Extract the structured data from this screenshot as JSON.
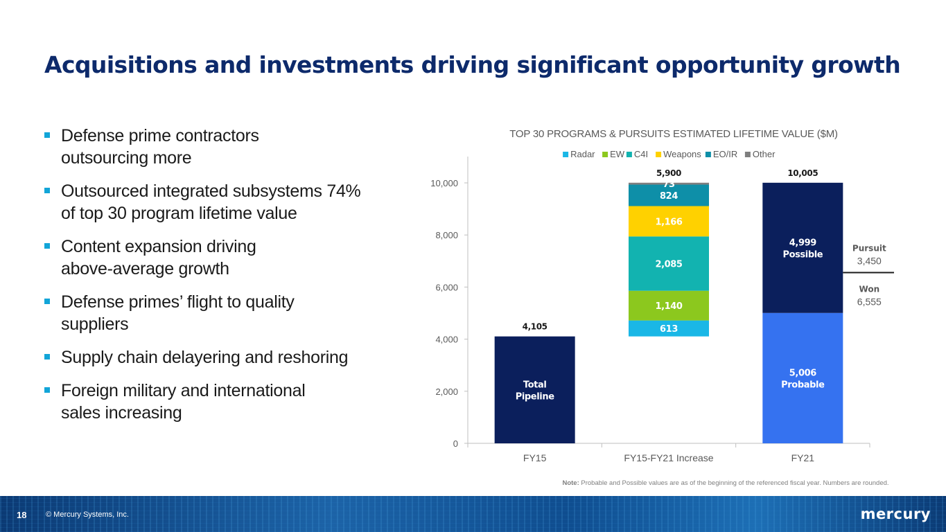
{
  "title": "Acquisitions and investments driving significant opportunity growth",
  "bullets": [
    {
      "lines": [
        "Defense prime contractors",
        "outsourcing more"
      ]
    },
    {
      "lines": [
        "Outsourced integrated subsystems 74%",
        "of top 30 program lifetime value"
      ]
    },
    {
      "lines": [
        "Content expansion driving",
        "above-average growth"
      ]
    },
    {
      "lines": [
        "Defense primes’ flight to quality",
        "suppliers"
      ]
    },
    {
      "lines": [
        "Supply chain delayering and reshoring"
      ]
    },
    {
      "lines": [
        "Foreign military and international",
        "sales increasing"
      ]
    }
  ],
  "chart_data": {
    "type": "bar",
    "stacked": true,
    "waterfall": true,
    "title": "TOP 30 PROGRAMS & PURSUITS ESTIMATED LIFETIME VALUE ($M)",
    "categories": [
      "FY15",
      "FY15-FY21 Increase",
      "FY21"
    ],
    "ylim": [
      0,
      10000
    ],
    "yticks": [
      0,
      2000,
      4000,
      6000,
      8000,
      10000
    ],
    "ytick_labels": [
      "0",
      "2,000",
      "4,000",
      "6,000",
      "8,000",
      "10,000"
    ],
    "grid": false,
    "legend": {
      "placement": "top",
      "entries": [
        {
          "name": "Radar",
          "color": "#1ab7e6"
        },
        {
          "name": "EW",
          "color": "#8cc81e"
        },
        {
          "name": "C4I",
          "color": "#12b3b0"
        },
        {
          "name": "Weapons",
          "color": "#ffd100"
        },
        {
          "name": "EO/IR",
          "color": "#0e8fa8"
        },
        {
          "name": "Other",
          "color": "#7f7f7f"
        }
      ]
    },
    "bars": [
      {
        "category": "FY15",
        "segments": [
          {
            "value": 4105,
            "color": "#0b1f5c",
            "label": [
              "Total",
              "Pipeline"
            ]
          }
        ],
        "total_label": "4,105"
      },
      {
        "category": "FY15-FY21 Increase",
        "base": 4105,
        "segments": [
          {
            "name": "Radar",
            "value": 613,
            "color": "#1ab7e6",
            "label": [
              "613"
            ]
          },
          {
            "name": "EW",
            "value": 1140,
            "color": "#8cc81e",
            "label": [
              "1,140"
            ]
          },
          {
            "name": "C4I",
            "value": 2085,
            "color": "#12b3b0",
            "label": [
              "2,085"
            ]
          },
          {
            "name": "Weapons",
            "value": 1166,
            "color": "#ffd100",
            "label": [
              "1,166"
            ]
          },
          {
            "name": "EO/IR",
            "value": 824,
            "color": "#0e8fa8",
            "label": [
              "824"
            ]
          },
          {
            "name": "Other",
            "value": 73,
            "color": "#7f7f7f",
            "label": [
              "73"
            ]
          }
        ],
        "total_label": "5,900"
      },
      {
        "category": "FY21",
        "segments": [
          {
            "value": 5006,
            "color": "#3572f0",
            "label": [
              "5,006",
              "Probable"
            ]
          },
          {
            "value": 4999,
            "color": "#0b1f5c",
            "label": [
              "4,999",
              "Possible"
            ]
          }
        ],
        "total_label": "10,005"
      }
    ],
    "annotations": {
      "pursuit": {
        "label": "Pursuit",
        "value": "3,450"
      },
      "won": {
        "label": "Won",
        "value": "6,555"
      }
    },
    "note_bold": "Note:",
    "note": "Probable and Possible values are as of the beginning of the referenced fiscal year. Numbers are rounded."
  },
  "footer": {
    "page": "18",
    "copyright": "© Mercury Systems, Inc.",
    "logo": "mercury"
  }
}
